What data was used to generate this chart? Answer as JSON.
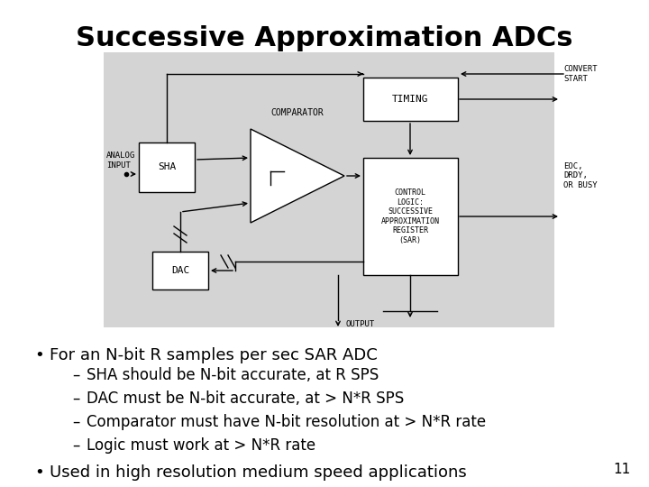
{
  "title": "Successive Approximation ADCs",
  "title_fontsize": 22,
  "bg_color": "#ffffff",
  "diagram_bg": "#d4d4d4",
  "bullet1": "For an N-bit R samples per sec SAR ADC",
  "sub_bullets": [
    "SHA should be N-bit accurate, at R SPS",
    "DAC must be N-bit accurate, at > N*R SPS",
    "Comparator must have N-bit resolution at > N*R rate",
    "Logic must work at > N*R rate"
  ],
  "bullet2": "Used in high resolution medium speed applications",
  "page_number": "11",
  "font_size_bullet": 13,
  "font_size_sub": 12
}
